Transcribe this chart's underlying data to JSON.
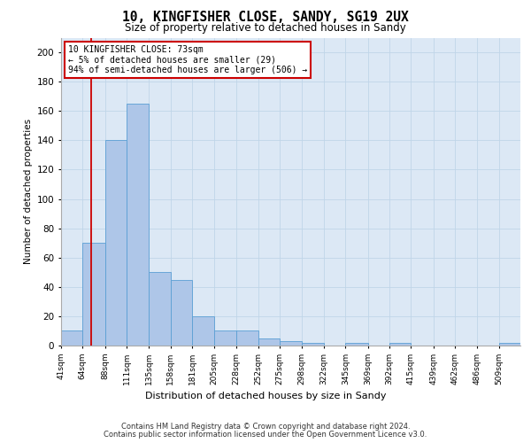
{
  "title1": "10, KINGFISHER CLOSE, SANDY, SG19 2UX",
  "title2": "Size of property relative to detached houses in Sandy",
  "xlabel": "Distribution of detached houses by size in Sandy",
  "ylabel": "Number of detached properties",
  "bin_labels": [
    "41sqm",
    "64sqm",
    "88sqm",
    "111sqm",
    "135sqm",
    "158sqm",
    "181sqm",
    "205sqm",
    "228sqm",
    "252sqm",
    "275sqm",
    "298sqm",
    "322sqm",
    "345sqm",
    "369sqm",
    "392sqm",
    "415sqm",
    "439sqm",
    "462sqm",
    "486sqm",
    "509sqm"
  ],
  "bin_edges": [
    41,
    64,
    88,
    111,
    135,
    158,
    181,
    205,
    228,
    252,
    275,
    298,
    322,
    345,
    369,
    392,
    415,
    439,
    462,
    486,
    509,
    532
  ],
  "bar_heights": [
    10,
    70,
    140,
    165,
    50,
    45,
    20,
    10,
    10,
    5,
    3,
    2,
    0,
    2,
    0,
    2,
    0,
    0,
    0,
    0,
    2
  ],
  "bar_color": "#aec6e8",
  "bar_edge_color": "#5a9fd4",
  "property_size": 73,
  "red_line_color": "#cc0000",
  "annotation_line1": "10 KINGFISHER CLOSE: 73sqm",
  "annotation_line2": "← 5% of detached houses are smaller (29)",
  "annotation_line3": "94% of semi-detached houses are larger (506) →",
  "annotation_box_color": "#ffffff",
  "annotation_box_edge_color": "#cc0000",
  "ylim": [
    0,
    210
  ],
  "yticks": [
    0,
    20,
    40,
    60,
    80,
    100,
    120,
    140,
    160,
    180,
    200
  ],
  "grid_color": "#c0d5e8",
  "bg_color": "#dce8f5",
  "footer1": "Contains HM Land Registry data © Crown copyright and database right 2024.",
  "footer2": "Contains public sector information licensed under the Open Government Licence v3.0."
}
